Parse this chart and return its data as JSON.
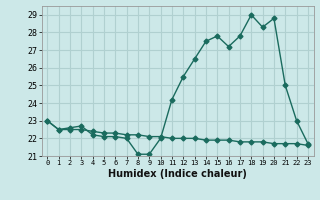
{
  "xlabel": "Humidex (Indice chaleur)",
  "ylabel": "",
  "bg_color": "#cce8e8",
  "line_color": "#1a6b5e",
  "grid_color": "#b0d0d0",
  "xlim": [
    -0.5,
    23.5
  ],
  "ylim": [
    21,
    29.5
  ],
  "yticks": [
    21,
    22,
    23,
    24,
    25,
    26,
    27,
    28,
    29
  ],
  "xticks": [
    0,
    1,
    2,
    3,
    4,
    5,
    6,
    7,
    8,
    9,
    10,
    11,
    12,
    13,
    14,
    15,
    16,
    17,
    18,
    19,
    20,
    21,
    22,
    23
  ],
  "series1_x": [
    0,
    1,
    2,
    3,
    4,
    5,
    6,
    7,
    8,
    9,
    10,
    11,
    12,
    13,
    14,
    15,
    16,
    17,
    18,
    19,
    20,
    21,
    22,
    23
  ],
  "series1_y": [
    23.0,
    22.5,
    22.6,
    22.7,
    22.2,
    22.1,
    22.1,
    22.0,
    21.1,
    21.1,
    22.0,
    24.2,
    25.5,
    26.5,
    27.5,
    27.8,
    27.2,
    27.8,
    29.0,
    28.3,
    28.8,
    25.0,
    23.0,
    21.7
  ],
  "series2_x": [
    0,
    1,
    2,
    3,
    4,
    5,
    6,
    7,
    8,
    9,
    10,
    11,
    12,
    13,
    14,
    15,
    16,
    17,
    18,
    19,
    20,
    21,
    22,
    23
  ],
  "series2_y": [
    23.0,
    22.5,
    22.5,
    22.5,
    22.4,
    22.3,
    22.3,
    22.2,
    22.2,
    22.1,
    22.1,
    22.0,
    22.0,
    22.0,
    21.9,
    21.9,
    21.9,
    21.8,
    21.8,
    21.8,
    21.7,
    21.7,
    21.7,
    21.6
  ],
  "marker": "D",
  "markersize": 2.5,
  "linewidth": 1.0
}
